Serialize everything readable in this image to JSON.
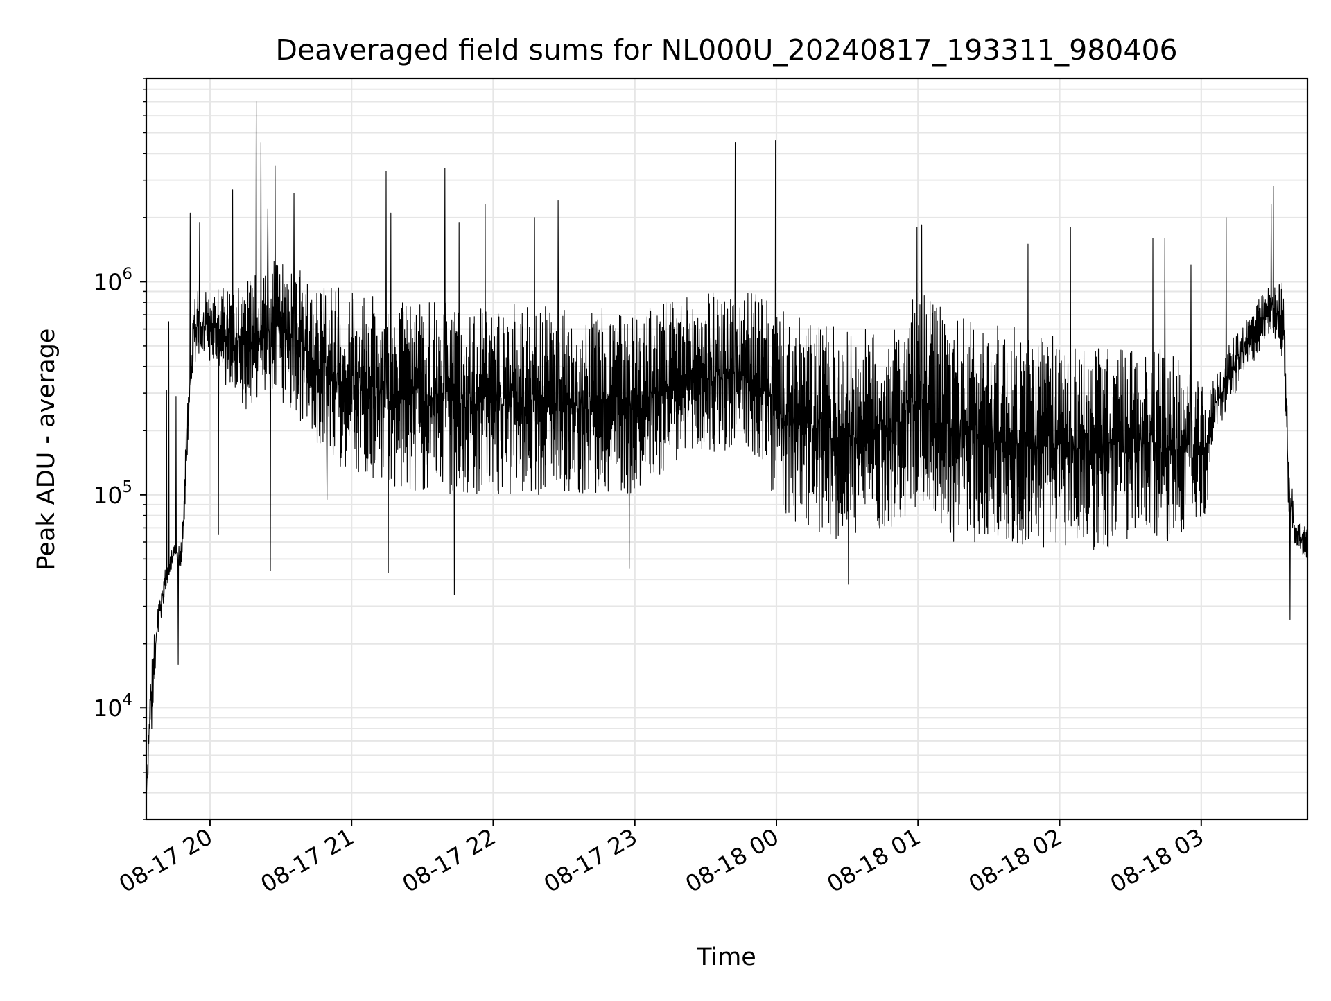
{
  "chart_data": {
    "type": "line",
    "title": "Deaveraged field sums for NL000U_20240817_193311_980406",
    "xlabel": "Time",
    "ylabel": "Peak ADU - average",
    "yscale": "log",
    "ylim": [
      3000,
      9000000
    ],
    "xlim": [
      "2024-08-17 19:33",
      "2024-08-18 03:45"
    ],
    "grid": true,
    "line_color": "#000000",
    "grid_color": "#e6e6e6",
    "x_ticks": [
      {
        "value": "2024-08-17 20:00",
        "label": "08-17 20"
      },
      {
        "value": "2024-08-17 21:00",
        "label": "08-17 21"
      },
      {
        "value": "2024-08-17 22:00",
        "label": "08-17 22"
      },
      {
        "value": "2024-08-17 23:00",
        "label": "08-17 23"
      },
      {
        "value": "2024-08-18 00:00",
        "label": "08-18 00"
      },
      {
        "value": "2024-08-18 01:00",
        "label": "08-18 01"
      },
      {
        "value": "2024-08-18 02:00",
        "label": "08-18 02"
      },
      {
        "value": "2024-08-18 03:00",
        "label": "08-18 03"
      }
    ],
    "y_ticks": [
      {
        "value": 10000,
        "base": "10",
        "exp": "4"
      },
      {
        "value": 100000,
        "base": "10",
        "exp": "5"
      },
      {
        "value": 1000000,
        "base": "10",
        "exp": "6"
      }
    ],
    "series": [
      {
        "envelope": [
          {
            "t": "2024-08-17 19:33",
            "low": 3500,
            "high": 4000
          },
          {
            "t": "2024-08-17 19:35",
            "low": 7000,
            "high": 17000
          },
          {
            "t": "2024-08-17 19:38",
            "low": 22000,
            "high": 30000
          },
          {
            "t": "2024-08-17 19:41",
            "low": 34000,
            "high": 45000
          },
          {
            "t": "2024-08-17 19:45",
            "low": 50000,
            "high": 60000
          },
          {
            "t": "2024-08-17 19:48",
            "low": 45000,
            "high": 60000
          },
          {
            "t": "2024-08-17 19:50",
            "low": 100000,
            "high": 220000
          },
          {
            "t": "2024-08-17 19:53",
            "low": 400000,
            "high": 900000
          },
          {
            "t": "2024-08-17 19:57",
            "low": 450000,
            "high": 900000
          },
          {
            "t": "2024-08-17 20:15",
            "low": 250000,
            "high": 1000000
          },
          {
            "t": "2024-08-17 20:27",
            "low": 300000,
            "high": 1300000
          },
          {
            "t": "2024-08-17 20:40",
            "low": 200000,
            "high": 1100000
          },
          {
            "t": "2024-08-17 21:00",
            "low": 120000,
            "high": 900000
          },
          {
            "t": "2024-08-17 21:30",
            "low": 100000,
            "high": 800000
          },
          {
            "t": "2024-08-17 22:00",
            "low": 100000,
            "high": 800000
          },
          {
            "t": "2024-08-17 22:30",
            "low": 100000,
            "high": 750000
          },
          {
            "t": "2024-08-17 23:00",
            "low": 100000,
            "high": 750000
          },
          {
            "t": "2024-08-17 23:30",
            "low": 150000,
            "high": 900000
          },
          {
            "t": "2024-08-17 23:50",
            "low": 150000,
            "high": 900000
          },
          {
            "t": "2024-08-18 00:05",
            "low": 70000,
            "high": 700000
          },
          {
            "t": "2024-08-18 00:30",
            "low": 60000,
            "high": 600000
          },
          {
            "t": "2024-08-18 00:50",
            "low": 70000,
            "high": 600000
          },
          {
            "t": "2024-08-18 01:00",
            "low": 90000,
            "high": 900000
          },
          {
            "t": "2024-08-18 01:15",
            "low": 60000,
            "high": 700000
          },
          {
            "t": "2024-08-18 01:45",
            "low": 55000,
            "high": 600000
          },
          {
            "t": "2024-08-18 02:15",
            "low": 55000,
            "high": 500000
          },
          {
            "t": "2024-08-18 02:45",
            "low": 60000,
            "high": 500000
          },
          {
            "t": "2024-08-18 03:03",
            "low": 80000,
            "high": 300000
          },
          {
            "t": "2024-08-18 03:05",
            "low": 180000,
            "high": 350000
          },
          {
            "t": "2024-08-18 03:15",
            "low": 300000,
            "high": 600000
          },
          {
            "t": "2024-08-18 03:30",
            "low": 600000,
            "high": 1000000
          },
          {
            "t": "2024-08-18 03:35",
            "low": 400000,
            "high": 1000000
          },
          {
            "t": "2024-08-18 03:37",
            "low": 80000,
            "high": 150000
          },
          {
            "t": "2024-08-18 03:40",
            "low": 55000,
            "high": 80000
          },
          {
            "t": "2024-08-18 03:45",
            "low": 50000,
            "high": 70000
          }
        ],
        "spikes": [
          {
            "t": "2024-08-17 19:42",
            "v": 310000
          },
          {
            "t": "2024-08-17 19:43",
            "v": 650000
          },
          {
            "t": "2024-08-17 19:46",
            "v": 290000
          },
          {
            "t": "2024-08-17 19:47",
            "v": 16000
          },
          {
            "t": "2024-08-17 19:52",
            "v": 2100000
          },
          {
            "t": "2024-08-17 19:56",
            "v": 1900000
          },
          {
            "t": "2024-08-17 20:04",
            "v": 65000
          },
          {
            "t": "2024-08-17 20:10",
            "v": 2700000
          },
          {
            "t": "2024-08-17 20:20",
            "v": 7000000
          },
          {
            "t": "2024-08-17 20:22",
            "v": 4500000
          },
          {
            "t": "2024-08-17 20:25",
            "v": 2200000
          },
          {
            "t": "2024-08-17 20:26",
            "v": 44000
          },
          {
            "t": "2024-08-17 20:28",
            "v": 3500000
          },
          {
            "t": "2024-08-17 20:36",
            "v": 2600000
          },
          {
            "t": "2024-08-17 20:50",
            "v": 95000
          },
          {
            "t": "2024-08-17 21:15",
            "v": 3300000
          },
          {
            "t": "2024-08-17 21:17",
            "v": 2100000
          },
          {
            "t": "2024-08-17 21:16",
            "v": 43000
          },
          {
            "t": "2024-08-17 21:40",
            "v": 3400000
          },
          {
            "t": "2024-08-17 21:46",
            "v": 1900000
          },
          {
            "t": "2024-08-17 21:44",
            "v": 34000
          },
          {
            "t": "2024-08-17 21:57",
            "v": 2300000
          },
          {
            "t": "2024-08-17 22:18",
            "v": 2000000
          },
          {
            "t": "2024-08-17 22:28",
            "v": 2400000
          },
          {
            "t": "2024-08-17 22:58",
            "v": 45000
          },
          {
            "t": "2024-08-17 23:43",
            "v": 4500000
          },
          {
            "t": "2024-08-18 00:00",
            "v": 4600000
          },
          {
            "t": "2024-08-18 00:31",
            "v": 38000
          },
          {
            "t": "2024-08-18 01:00",
            "v": 1800000
          },
          {
            "t": "2024-08-18 01:02",
            "v": 1850000
          },
          {
            "t": "2024-08-18 01:47",
            "v": 1500000
          },
          {
            "t": "2024-08-18 02:05",
            "v": 1800000
          },
          {
            "t": "2024-08-18 02:40",
            "v": 1600000
          },
          {
            "t": "2024-08-18 02:45",
            "v": 1600000
          },
          {
            "t": "2024-08-18 02:56",
            "v": 1200000
          },
          {
            "t": "2024-08-18 03:11",
            "v": 2000000
          },
          {
            "t": "2024-08-18 03:30",
            "v": 2300000
          },
          {
            "t": "2024-08-18 03:31",
            "v": 2800000
          },
          {
            "t": "2024-08-18 03:38",
            "v": 26000
          }
        ]
      }
    ]
  }
}
